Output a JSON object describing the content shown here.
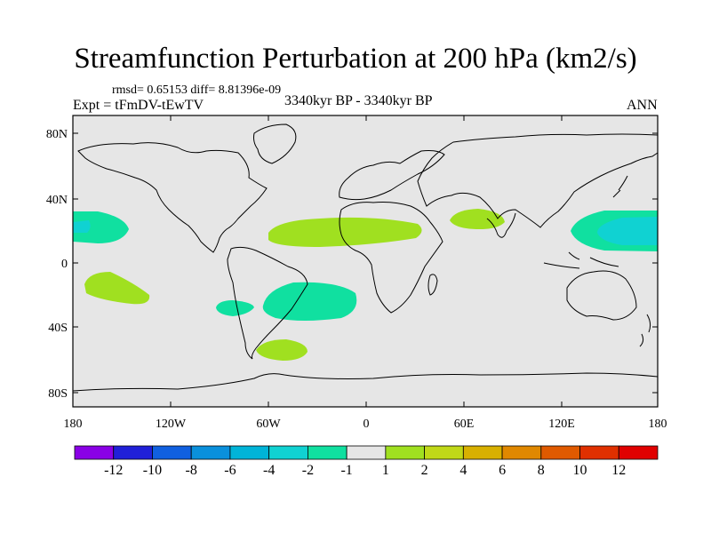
{
  "title": "Streamfunction Perturbation at 200 hPa (km2/s)",
  "stats": "rmsd= 0.65153 diff= 8.81396e-09",
  "experiment": "Expt = tFmDV-tEwTV",
  "period": "3340kyr BP - 3340kyr BP",
  "season": "ANN",
  "axes": {
    "lat_labels": [
      "80N",
      "40N",
      "0",
      "40S",
      "80S"
    ],
    "lon_labels": [
      "180",
      "120W",
      "60W",
      "0",
      "60E",
      "120E",
      "180"
    ]
  },
  "colorbar": {
    "labels": [
      "-12",
      "-10",
      "-8",
      "-6",
      "-4",
      "-2",
      "-1",
      "1",
      "2",
      "4",
      "6",
      "8",
      "10",
      "12"
    ],
    "colors": [
      "#8a00e6",
      "#2020d8",
      "#1060e0",
      "#0a90dc",
      "#00b4d8",
      "#10d2d2",
      "#10e0a0",
      "#e6e6e6",
      "#a0e020",
      "#c0d818",
      "#d8b000",
      "#e08800",
      "#e05a00",
      "#e03000",
      "#e00000"
    ]
  },
  "colors": {
    "background": "#e6e6e6",
    "positive_1_2": "#a0e020",
    "negative_1_2": "#10e0a0",
    "negative_2_4": "#10d2d2"
  }
}
